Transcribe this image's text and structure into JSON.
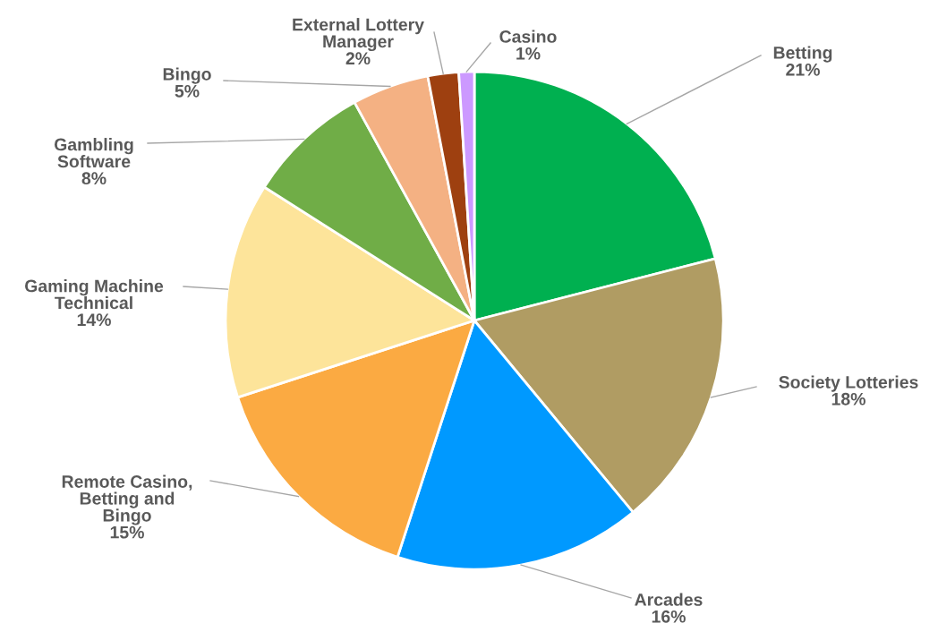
{
  "chart_data": {
    "type": "pie",
    "categories": [
      "Betting",
      "Society Lotteries",
      "Arcades",
      "Remote Casino,\nBetting and\nBingo",
      "Gaming Machine\nTechnical",
      "Gambling\nSoftware",
      "Bingo",
      "External Lottery\nManager",
      "Casino"
    ],
    "values": [
      21,
      18,
      16,
      15,
      14,
      8,
      5,
      2,
      1
    ],
    "value_labels": [
      "21%",
      "18%",
      "16%",
      "15%",
      "14%",
      "8%",
      "5%",
      "2%",
      "1%"
    ],
    "colors": [
      "#00b050",
      "#b09c63",
      "#0099ff",
      "#fbaa42",
      "#fde49a",
      "#70ad47",
      "#f4b183",
      "#9e4010",
      "#cc99ff"
    ]
  }
}
